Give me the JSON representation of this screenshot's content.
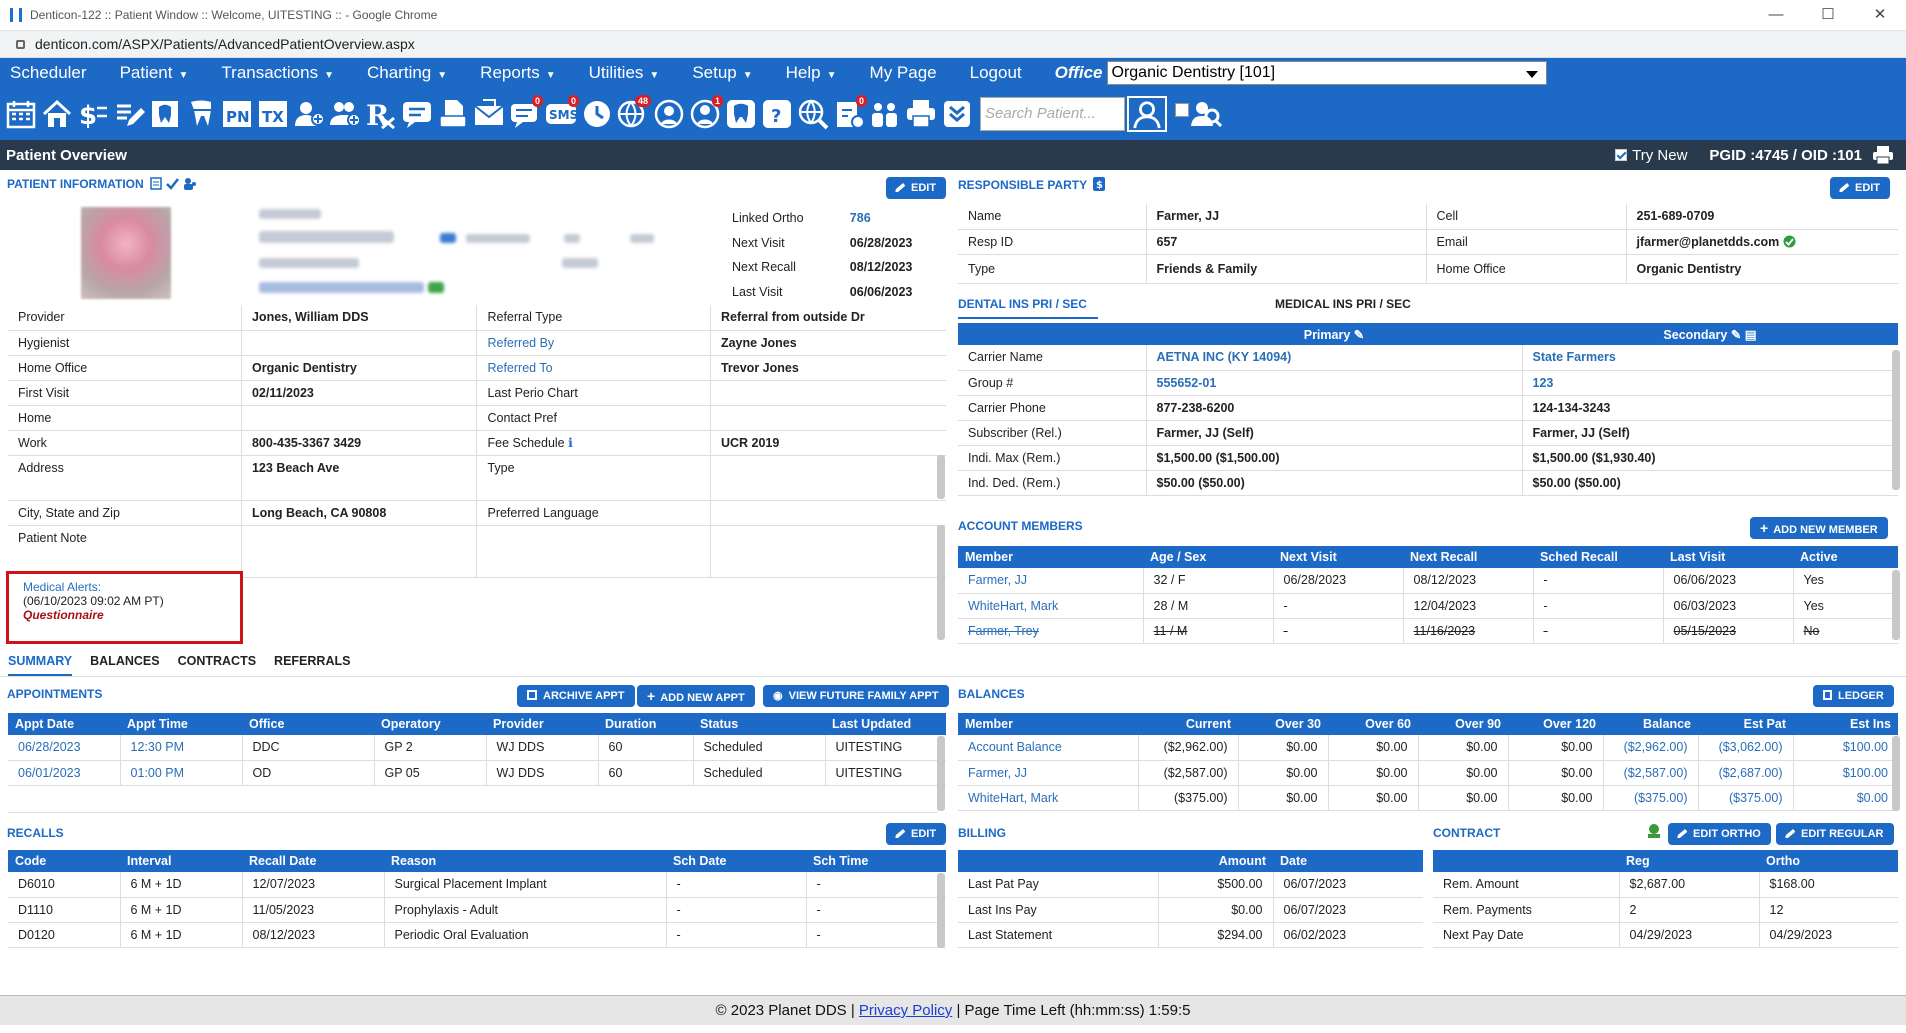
{
  "browser": {
    "title": "Denticon-122 :: Patient Window :: Welcome, UITESTING :: - Google Chrome",
    "url": "denticon.com/ASPX/Patients/AdvancedPatientOverview.aspx"
  },
  "menu": {
    "items": [
      "Scheduler",
      "Patient",
      "Transactions",
      "Charting",
      "Reports",
      "Utilities",
      "Setup",
      "Help",
      "My Page",
      "Logout"
    ],
    "carets": [
      false,
      true,
      true,
      true,
      true,
      true,
      true,
      true,
      false,
      false
    ],
    "office_label": "Office",
    "office_value": "Organic Dentistry [101]"
  },
  "toolbar": {
    "badges": {
      "sms": "0",
      "globe": "48",
      "doctor": "1",
      "inbox": "0"
    },
    "search_placeholder": "Search Patient..."
  },
  "overview": {
    "title": "Patient Overview",
    "try_new": "Try New",
    "ids": "PGID :4745  /  OID :101"
  },
  "patient": {
    "section": "PATIENT INFORMATION",
    "edit": "EDIT",
    "linked": [
      [
        "Linked Ortho",
        "786"
      ],
      [
        "Next Visit",
        "06/28/2023"
      ],
      [
        "Next Recall",
        "08/12/2023"
      ],
      [
        "Last Visit",
        "06/06/2023"
      ]
    ],
    "rows": [
      [
        "Provider",
        "Jones, William DDS",
        "Referral Type",
        "Referral from outside Dr"
      ],
      [
        "Hygienist",
        "",
        "Referred By",
        "Zayne Jones"
      ],
      [
        "Home Office",
        "Organic Dentistry",
        "Referred To",
        "Trevor Jones"
      ],
      [
        "First Visit",
        "02/11/2023",
        "Last Perio Chart",
        ""
      ],
      [
        "Home",
        "",
        "Contact Pref",
        ""
      ],
      [
        "Work",
        "800-435-3367 3429",
        "Fee Schedule",
        "UCR 2019"
      ],
      [
        "Address",
        "123 Beach Ave",
        "Type",
        ""
      ],
      [
        "City, State and Zip",
        "Long Beach, CA 90808",
        "Preferred Language",
        ""
      ],
      [
        "Patient Note",
        "",
        "",
        ""
      ]
    ],
    "alert": {
      "title": "Medical Alerts:",
      "date": "(06/10/2023 09:02 AM PT)",
      "link": "Questionnaire"
    }
  },
  "responsible": {
    "section": "RESPONSIBLE PARTY",
    "edit": "EDIT",
    "rows": [
      [
        "Name",
        "Farmer, JJ",
        "Cell",
        "251-689-0709"
      ],
      [
        "Resp ID",
        "657",
        "Email",
        "jfarmer@planetdds.com"
      ],
      [
        "Type",
        "Friends & Family",
        "Home Office",
        "Organic Dentistry"
      ]
    ]
  },
  "insurance": {
    "tab1": "DENTAL INS PRI / SEC",
    "tab2": "MEDICAL INS PRI / SEC",
    "primary": "Primary",
    "secondary": "Secondary",
    "rows": [
      [
        "Carrier Name",
        "AETNA INC (KY 14094)",
        "State Farmers"
      ],
      [
        "Group #",
        "555652-01",
        "123"
      ],
      [
        "Carrier Phone",
        "877-238-6200",
        "124-134-3243"
      ],
      [
        "Subscriber (Rel.)",
        "Farmer, JJ (Self)",
        "Farmer, JJ (Self)"
      ],
      [
        "Indi. Max (Rem.)",
        "$1,500.00 ($1,500.00)",
        "$1,500.00 ($1,930.40)"
      ],
      [
        "Ind. Ded. (Rem.)",
        "$50.00 ($50.00)",
        "$50.00 ($50.00)"
      ]
    ]
  },
  "members": {
    "section": "ACCOUNT MEMBERS",
    "add": "ADD NEW MEMBER",
    "headers": [
      "Member",
      "Age / Sex",
      "Next Visit",
      "Next Recall",
      "Sched Recall",
      "Last Visit",
      "Active"
    ],
    "rows": [
      [
        "Farmer, JJ",
        "32 / F",
        "06/28/2023",
        "08/12/2023",
        "-",
        "06/06/2023",
        "Yes"
      ],
      [
        "WhiteHart, Mark",
        "28 / M",
        "-",
        "12/04/2023",
        "-",
        "06/03/2023",
        "Yes"
      ],
      [
        "Farmer, Trey",
        "11 / M",
        "-",
        "11/16/2023",
        "-",
        "05/15/2023",
        "No"
      ]
    ]
  },
  "tabs": [
    "SUMMARY",
    "BALANCES",
    "CONTRACTS",
    "REFERRALS"
  ],
  "appointments": {
    "section": "APPOINTMENTS",
    "archive": "ARCHIVE APPT",
    "add": "ADD NEW APPT",
    "future": "VIEW FUTURE FAMILY APPT",
    "headers": [
      "Appt Date",
      "Appt Time",
      "Office",
      "Operatory",
      "Provider",
      "Duration",
      "Status",
      "Last Updated"
    ],
    "rows": [
      [
        "06/28/2023",
        "12:30 PM",
        "DDC",
        "GP 2",
        "WJ DDS",
        "60",
        "Scheduled",
        "UITESTING"
      ],
      [
        "06/01/2023",
        "01:00 PM",
        "OD",
        "GP 05",
        "WJ DDS",
        "60",
        "Scheduled",
        "UITESTING"
      ]
    ]
  },
  "balances": {
    "section": "BALANCES",
    "ledger": "LEDGER",
    "headers": [
      "Member",
      "Current",
      "Over 30",
      "Over 60",
      "Over 90",
      "Over 120",
      "Balance",
      "Est Pat",
      "Est Ins"
    ],
    "rows": [
      [
        "Account Balance",
        "($2,962.00)",
        "$0.00",
        "$0.00",
        "$0.00",
        "$0.00",
        "($2,962.00)",
        "($3,062.00)",
        "$100.00"
      ],
      [
        "Farmer, JJ",
        "($2,587.00)",
        "$0.00",
        "$0.00",
        "$0.00",
        "$0.00",
        "($2,587.00)",
        "($2,687.00)",
        "$100.00"
      ],
      [
        "WhiteHart, Mark",
        "($375.00)",
        "$0.00",
        "$0.00",
        "$0.00",
        "$0.00",
        "($375.00)",
        "($375.00)",
        "$0.00"
      ]
    ]
  },
  "recalls": {
    "section": "RECALLS",
    "edit": "EDIT",
    "headers": [
      "Code",
      "Interval",
      "Recall Date",
      "Reason",
      "Sch Date",
      "Sch Time"
    ],
    "rows": [
      [
        "D6010",
        "6 M + 1D",
        "12/07/2023",
        "Surgical Placement Implant",
        "-",
        "-"
      ],
      [
        "D1110",
        "6 M + 1D",
        "11/05/2023",
        "Prophylaxis - Adult",
        "-",
        "-"
      ],
      [
        "D0120",
        "6 M + 1D",
        "08/12/2023",
        "Periodic Oral Evaluation",
        "-",
        "-"
      ]
    ]
  },
  "billing": {
    "section": "BILLING",
    "headers": [
      "",
      "Amount",
      "Date"
    ],
    "rows": [
      [
        "Last Pat Pay",
        "$500.00",
        "06/07/2023"
      ],
      [
        "Last Ins Pay",
        "$0.00",
        "06/07/2023"
      ],
      [
        "Last Statement",
        "$294.00",
        "06/02/2023"
      ]
    ]
  },
  "contract": {
    "section": "CONTRACT",
    "edit_ortho": "EDIT ORTHO",
    "edit_regular": "EDIT REGULAR",
    "headers": [
      "",
      "Reg",
      "Ortho"
    ],
    "rows": [
      [
        "Rem. Amount",
        "$2,687.00",
        "$168.00"
      ],
      [
        "Rem. Payments",
        "2",
        "12"
      ],
      [
        "Next Pay Date",
        "04/29/2023",
        "04/29/2023"
      ]
    ]
  },
  "footer": {
    "copy": "© 2023 Planet DDS |",
    "privacy": "Privacy Policy",
    "rest": "| Page Time Left (hh:mm:ss) 1:59:5"
  },
  "colors": {
    "brand": "#1c69c6",
    "dark_bar": "#2a3a4d",
    "alert": "#cf111a"
  }
}
